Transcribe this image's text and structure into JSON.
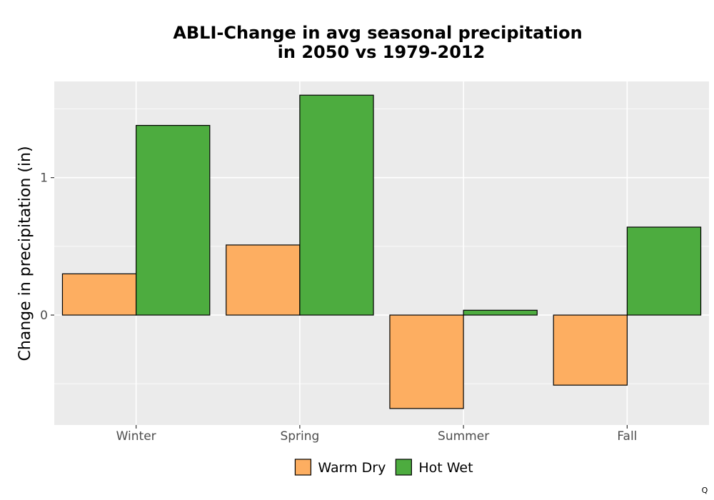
{
  "chart_data": {
    "type": "bar",
    "title_lines": [
      "ABLI-Change in avg seasonal precipitation",
      "in 2050 vs 1979-2012"
    ],
    "xlabel": "",
    "ylabel": "Change in precipitation (in)",
    "categories": [
      "Winter",
      "Spring",
      "Summer",
      "Fall"
    ],
    "series": [
      {
        "name": "Warm Dry",
        "color": "#FDAE61",
        "values": [
          0.3,
          0.51,
          -0.68,
          -0.51
        ]
      },
      {
        "name": "Hot Wet",
        "color": "#4DAC3F",
        "values": [
          1.38,
          1.6,
          0.035,
          0.64
        ]
      }
    ],
    "ylim": [
      -0.8,
      1.7
    ],
    "yticks": [
      0,
      1
    ],
    "ytick_labels": [
      "0",
      "1"
    ],
    "grid": true,
    "legend_position": "bottom",
    "panel_background": "#EBEBEB",
    "footnote": "Q"
  }
}
